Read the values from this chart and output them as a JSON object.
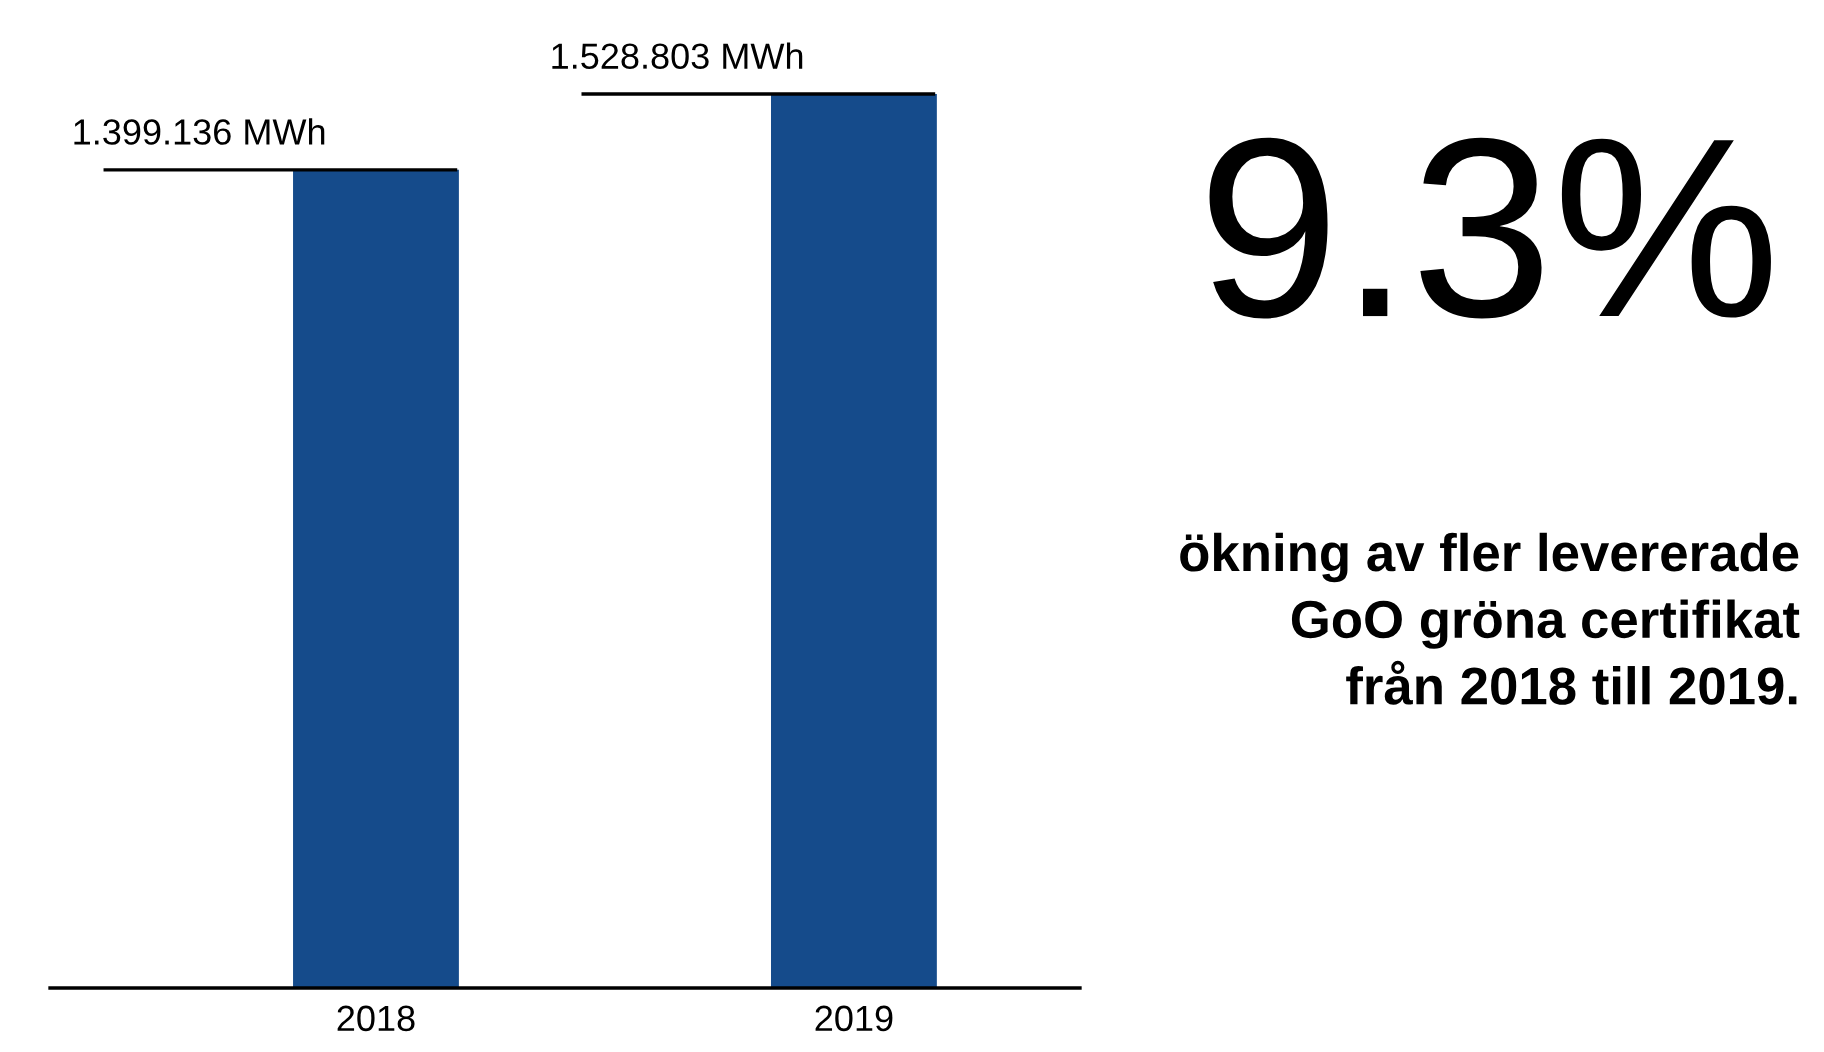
{
  "chart_data": {
    "type": "bar",
    "categories": [
      "2018",
      "2019"
    ],
    "values": [
      1399136,
      1528803
    ],
    "color": "#154b8b",
    "value_labels": [
      "1.399.136 MWh",
      "1.528.803 MWh"
    ],
    "tick_labels": "x",
    "grid": false,
    "annotations": [
      "9.3%",
      "ökning av fler levererade\nGoO gröna certifikat\nfrån 2018 till 2019."
    ]
  }
}
